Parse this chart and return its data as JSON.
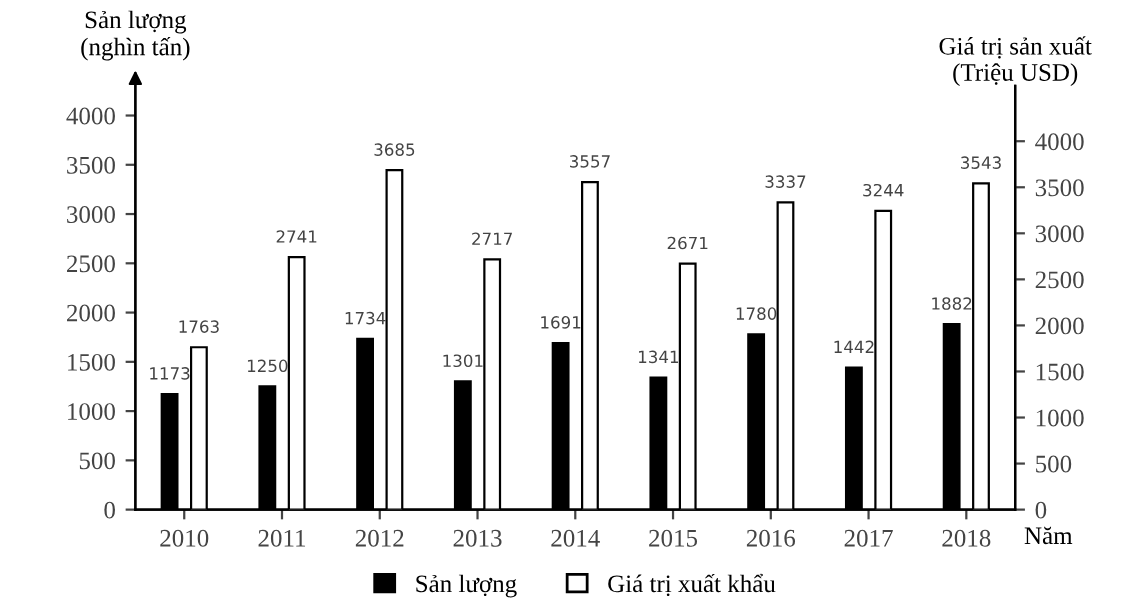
{
  "chart_data": {
    "type": "bar",
    "categories": [
      "2010",
      "2011",
      "2012",
      "2013",
      "2014",
      "2015",
      "2016",
      "2017",
      "2018"
    ],
    "ylabel": "Sản lượng\n(nghìn tấn)",
    "y2label": "Giá trị sản xuất\n(Triệu USD)",
    "xlabel": "Năm",
    "series": [
      {
        "name": "Sản lượng",
        "color": "#000000",
        "values": [
          1173,
          1250,
          1734,
          1301,
          1691,
          1341,
          1780,
          1442,
          1882
        ]
      },
      {
        "name": "Giá trị xuất khẩu",
        "color": "#ffffff",
        "axis": "y2",
        "values": [
          1763,
          2741,
          3685,
          2717,
          3557,
          2671,
          3337,
          3244,
          3543
        ]
      }
    ],
    "ylim": [
      0,
      4300
    ],
    "yticks": [
      0,
      500,
      1000,
      1500,
      2000,
      2500,
      3000,
      3500,
      4000
    ],
    "y2lim": [
      0,
      4600
    ],
    "y2ticks": [
      0,
      500,
      1000,
      1500,
      2000,
      2500,
      3000,
      3500,
      4000
    ],
    "data_labels": true,
    "grid": false,
    "legend": "bottom"
  }
}
